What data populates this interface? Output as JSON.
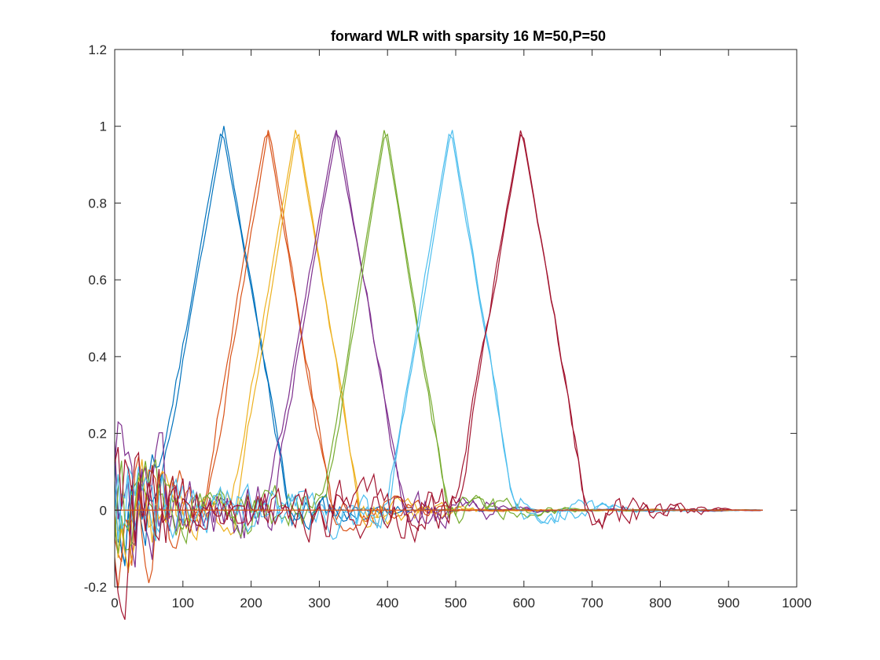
{
  "chart_data": {
    "type": "line",
    "title": "forward WLR with sparsity 16 M=50,P=50",
    "xlabel": "",
    "ylabel": "",
    "xlim": [
      0,
      1000
    ],
    "ylim": [
      -0.2,
      1.2
    ],
    "xticks": [
      0,
      100,
      200,
      300,
      400,
      500,
      600,
      700,
      800,
      900,
      1000
    ],
    "yticks": [
      -0.2,
      0,
      0.2,
      0.4,
      0.6,
      0.8,
      1,
      1.2
    ],
    "xtick_labels": [
      "0",
      "100",
      "200",
      "300",
      "400",
      "500",
      "600",
      "700",
      "800",
      "900",
      "1000"
    ],
    "ytick_labels": [
      "-0.2",
      "0",
      "0.2",
      "0.4",
      "0.6",
      "0.8",
      "1",
      "1.2"
    ],
    "grid": false,
    "legend": "none",
    "x_end": 950,
    "series": [
      {
        "color": "#0072BD",
        "peak": 157,
        "half_width": 100,
        "noise": 0.05,
        "seed": 11
      },
      {
        "color": "#0072BD",
        "peak": 160,
        "half_width": 96,
        "noise": 0.05,
        "seed": 12
      },
      {
        "color": "#D95319",
        "peak": 223,
        "half_width": 95,
        "noise": 0.05,
        "seed": 21
      },
      {
        "color": "#D95319",
        "peak": 226,
        "half_width": 92,
        "noise": 0.05,
        "seed": 22
      },
      {
        "color": "#EDB120",
        "peak": 266,
        "half_width": 95,
        "noise": 0.04,
        "seed": 31
      },
      {
        "color": "#EDB120",
        "peak": 268,
        "half_width": 92,
        "noise": 0.04,
        "seed": 32
      },
      {
        "color": "#7E2F8E",
        "peak": 324,
        "half_width": 100,
        "noise": 0.06,
        "seed": 41
      },
      {
        "color": "#7E2F8E",
        "peak": 327,
        "half_width": 97,
        "noise": 0.06,
        "seed": 42
      },
      {
        "color": "#77AC30",
        "peak": 396,
        "half_width": 92,
        "noise": 0.04,
        "seed": 51
      },
      {
        "color": "#77AC30",
        "peak": 398,
        "half_width": 90,
        "noise": 0.04,
        "seed": 52
      },
      {
        "color": "#4DBEEE",
        "peak": 492,
        "half_width": 95,
        "noise": 0.04,
        "seed": 61
      },
      {
        "color": "#4DBEEE",
        "peak": 494,
        "half_width": 93,
        "noise": 0.04,
        "seed": 62
      },
      {
        "color": "#A2142F",
        "peak": 596,
        "half_width": 97,
        "noise": 0.05,
        "seed": 71
      },
      {
        "color": "#A2142F",
        "peak": 597,
        "half_width": 95,
        "noise": 0.05,
        "seed": 72
      }
    ],
    "baseline": {
      "color": "#D95319",
      "y": 0
    }
  }
}
